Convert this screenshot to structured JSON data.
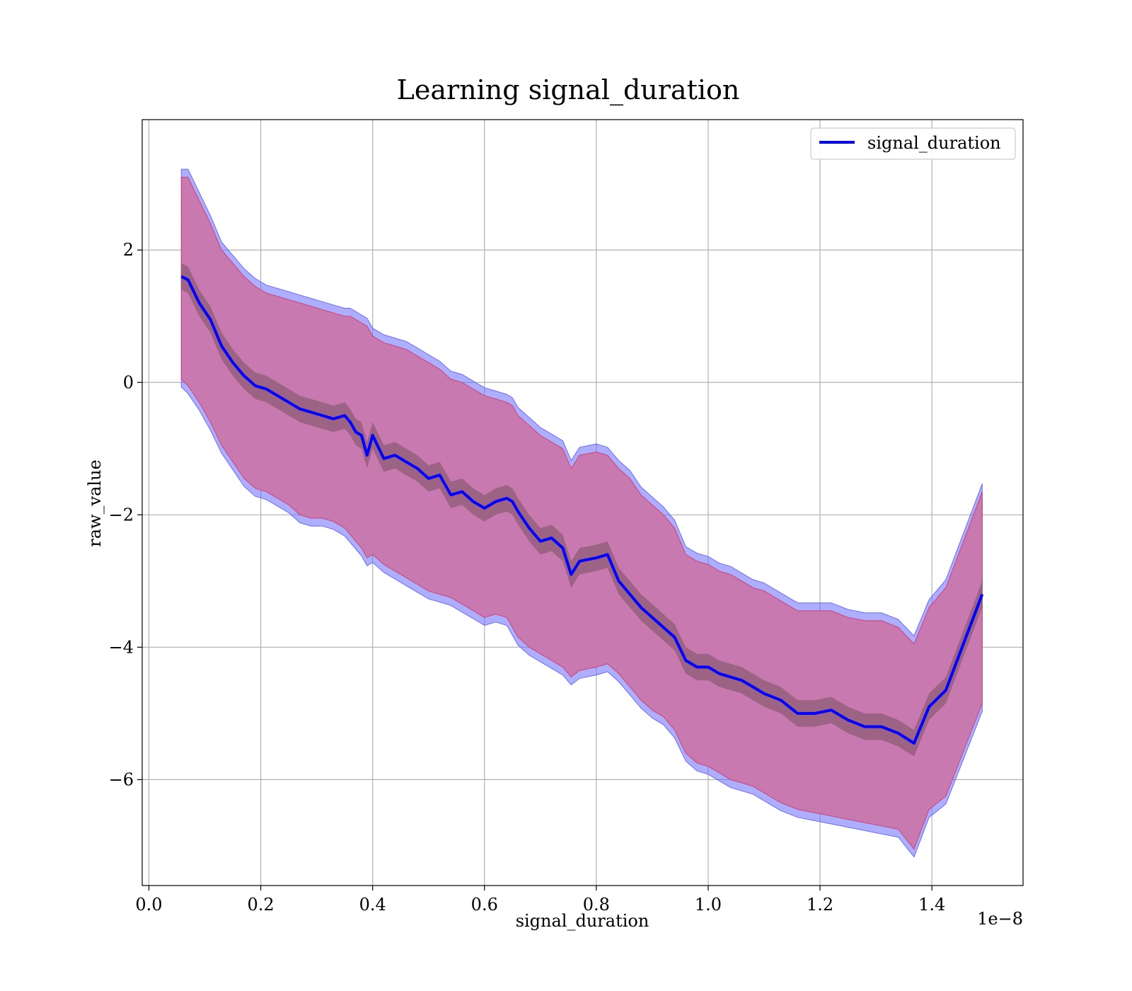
{
  "chart_data": {
    "type": "line",
    "title": "Learning signal_duration",
    "xlabel": "signal_duration",
    "ylabel": "raw_value",
    "x_offset_label": "1e−8",
    "xlim": [
      -0.012,
      1.563
    ],
    "ylim": [
      -7.6,
      3.97
    ],
    "x_ticks": [
      0.0,
      0.2,
      0.4,
      0.6,
      0.8,
      1.0,
      1.2,
      1.4
    ],
    "x_tick_labels": [
      "0.0",
      "0.2",
      "0.4",
      "0.6",
      "0.8",
      "1.0",
      "1.2",
      "1.4"
    ],
    "y_ticks": [
      2,
      0,
      -2,
      -4,
      -6
    ],
    "y_tick_labels": [
      "2",
      "0",
      "−2",
      "−4",
      "−6"
    ],
    "grid": true,
    "legend": {
      "position": "top-right",
      "entries": [
        "signal_duration"
      ]
    },
    "colors": {
      "mean_line": "#0000ff",
      "outer_band_blue": "#6b6bff",
      "outer_band_red": "#cc3366",
      "outer_band_fill": "#c87ab0",
      "inner_band": "#7a5060",
      "grid": "#b0b0b0"
    },
    "series": [
      {
        "name": "signal_duration",
        "x": [
          0.058,
          0.07,
          0.09,
          0.11,
          0.13,
          0.15,
          0.17,
          0.19,
          0.21,
          0.23,
          0.25,
          0.27,
          0.29,
          0.31,
          0.33,
          0.35,
          0.36,
          0.37,
          0.38,
          0.39,
          0.4,
          0.42,
          0.44,
          0.46,
          0.48,
          0.5,
          0.52,
          0.54,
          0.56,
          0.58,
          0.6,
          0.62,
          0.64,
          0.65,
          0.66,
          0.68,
          0.7,
          0.72,
          0.74,
          0.755,
          0.77,
          0.8,
          0.82,
          0.84,
          0.86,
          0.88,
          0.9,
          0.92,
          0.94,
          0.96,
          0.98,
          1.0,
          1.02,
          1.04,
          1.06,
          1.08,
          1.1,
          1.13,
          1.16,
          1.19,
          1.22,
          1.25,
          1.28,
          1.31,
          1.34,
          1.368,
          1.395,
          1.425,
          1.49
        ],
        "y": [
          1.6,
          1.55,
          1.2,
          0.95,
          0.55,
          0.3,
          0.1,
          -0.05,
          -0.1,
          -0.2,
          -0.3,
          -0.4,
          -0.45,
          -0.5,
          -0.55,
          -0.5,
          -0.6,
          -0.75,
          -0.8,
          -1.1,
          -0.8,
          -1.15,
          -1.1,
          -1.2,
          -1.3,
          -1.45,
          -1.4,
          -1.7,
          -1.65,
          -1.8,
          -1.9,
          -1.8,
          -1.75,
          -1.8,
          -1.95,
          -2.2,
          -2.4,
          -2.35,
          -2.5,
          -2.9,
          -2.7,
          -2.65,
          -2.6,
          -3.0,
          -3.2,
          -3.4,
          -3.55,
          -3.7,
          -3.85,
          -4.2,
          -4.3,
          -4.3,
          -4.4,
          -4.45,
          -4.5,
          -4.6,
          -4.7,
          -4.8,
          -5.0,
          -5.0,
          -4.95,
          -5.1,
          -5.2,
          -5.2,
          -5.3,
          -5.45,
          -4.9,
          -4.65,
          -3.2
        ],
        "band_upper": [
          3.1,
          3.1,
          2.75,
          2.4,
          2.0,
          1.8,
          1.6,
          1.45,
          1.35,
          1.3,
          1.25,
          1.2,
          1.15,
          1.1,
          1.05,
          1.0,
          1.0,
          0.95,
          0.9,
          0.85,
          0.7,
          0.6,
          0.55,
          0.5,
          0.4,
          0.3,
          0.2,
          0.05,
          0.0,
          -0.1,
          -0.2,
          -0.25,
          -0.3,
          -0.35,
          -0.5,
          -0.65,
          -0.8,
          -0.9,
          -1.0,
          -1.3,
          -1.1,
          -1.05,
          -1.1,
          -1.3,
          -1.45,
          -1.7,
          -1.85,
          -2.0,
          -2.2,
          -2.6,
          -2.7,
          -2.75,
          -2.85,
          -2.9,
          -3.0,
          -3.1,
          -3.15,
          -3.3,
          -3.45,
          -3.45,
          -3.45,
          -3.55,
          -3.6,
          -3.6,
          -3.7,
          -3.95,
          -3.4,
          -3.1,
          -1.65
        ],
        "band_lower": [
          0.05,
          -0.05,
          -0.3,
          -0.6,
          -0.95,
          -1.2,
          -1.45,
          -1.6,
          -1.65,
          -1.75,
          -1.85,
          -2.0,
          -2.05,
          -2.05,
          -2.1,
          -2.2,
          -2.3,
          -2.4,
          -2.5,
          -2.65,
          -2.6,
          -2.75,
          -2.85,
          -2.95,
          -3.05,
          -3.15,
          -3.2,
          -3.25,
          -3.35,
          -3.45,
          -3.55,
          -3.5,
          -3.55,
          -3.7,
          -3.85,
          -4.0,
          -4.1,
          -4.2,
          -4.3,
          -4.45,
          -4.35,
          -4.3,
          -4.25,
          -4.4,
          -4.6,
          -4.8,
          -4.95,
          -5.05,
          -5.25,
          -5.6,
          -5.75,
          -5.8,
          -5.9,
          -6.0,
          -6.05,
          -6.1,
          -6.2,
          -6.35,
          -6.45,
          -6.5,
          -6.55,
          -6.6,
          -6.65,
          -6.7,
          -6.75,
          -7.05,
          -6.45,
          -6.25,
          -4.85
        ],
        "inner_half_width": 0.2
      }
    ]
  }
}
